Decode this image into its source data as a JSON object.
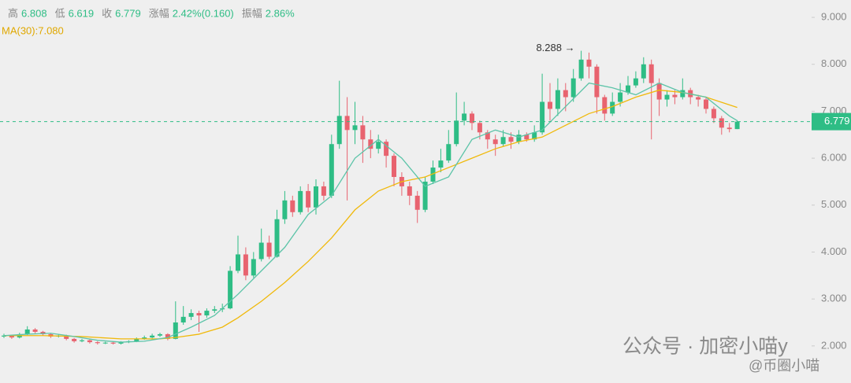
{
  "chart_data": {
    "type": "candlestick",
    "up_color": "#2ebd85",
    "down_color": "#e8636f",
    "ylim": [
      1.21,
      9.37
    ],
    "yticks": [
      {
        "value": 2,
        "label": "2.000"
      },
      {
        "value": 3,
        "label": "3.000"
      },
      {
        "value": 4,
        "label": "4.000"
      },
      {
        "value": 5,
        "label": "5.000"
      },
      {
        "value": 6,
        "label": "6.000"
      },
      {
        "value": 7,
        "label": "7.000"
      },
      {
        "value": 8,
        "label": "8.000"
      },
      {
        "value": 9,
        "label": "9.000"
      }
    ],
    "open": [
      2.2,
      2.22,
      2.18,
      2.25,
      2.35,
      2.3,
      2.25,
      2.2,
      2.22,
      2.15,
      2.1,
      2.12,
      2.08,
      2.06,
      2.07,
      2.05,
      2.08,
      2.1,
      2.15,
      2.18,
      2.22,
      2.25,
      2.15,
      2.5,
      2.62,
      2.7,
      2.65,
      2.75,
      2.78,
      2.8,
      3.6,
      3.95,
      3.5,
      3.85,
      4.2,
      3.9,
      4.7,
      5.1,
      4.85,
      5.3,
      4.95,
      5.4,
      5.2,
      6.3,
      6.9,
      6.6,
      6.7,
      6.4,
      6.2,
      6.35,
      6.05,
      5.6,
      5.4,
      5.2,
      4.9,
      5.5,
      5.8,
      5.95,
      6.3,
      6.8,
      6.95,
      6.75,
      6.55,
      6.4,
      6.3,
      6.45,
      6.35,
      6.5,
      6.4,
      6.55,
      7.2,
      7.05,
      7.45,
      7.3,
      7.7,
      8.1,
      7.95,
      7.3,
      6.95,
      7.2,
      7.4,
      7.55,
      7.7,
      8.0,
      7.6,
      7.25,
      7.35,
      7.3,
      7.45,
      7.3,
      7.25,
      7.05,
      6.85,
      6.65,
      6.62
    ],
    "high": [
      2.26,
      2.24,
      2.28,
      2.42,
      2.38,
      2.32,
      2.27,
      2.25,
      2.24,
      2.17,
      2.15,
      2.14,
      2.1,
      2.09,
      2.09,
      2.1,
      2.12,
      2.18,
      2.22,
      2.26,
      2.28,
      2.27,
      2.95,
      2.85,
      2.78,
      2.75,
      2.8,
      2.85,
      2.9,
      3.7,
      4.35,
      4.1,
      4.0,
      4.5,
      4.35,
      4.9,
      5.3,
      5.2,
      5.4,
      5.45,
      5.55,
      5.5,
      6.5,
      7.65,
      7.3,
      7.2,
      6.9,
      6.6,
      6.5,
      6.4,
      6.1,
      5.7,
      5.5,
      5.3,
      5.6,
      5.95,
      6.2,
      6.6,
      7.4,
      7.2,
      7.0,
      6.8,
      6.6,
      6.5,
      6.6,
      6.55,
      6.6,
      6.55,
      6.7,
      7.8,
      7.6,
      7.7,
      7.6,
      7.9,
      8.288,
      8.25,
      8.0,
      7.35,
      7.4,
      7.6,
      7.75,
      7.85,
      8.15,
      8.1,
      7.7,
      7.45,
      7.45,
      7.7,
      7.5,
      7.35,
      7.3,
      7.1,
      6.9,
      6.75,
      6.808
    ],
    "low": [
      2.17,
      2.15,
      2.16,
      2.23,
      2.27,
      2.22,
      2.17,
      2.18,
      2.12,
      2.07,
      2.08,
      2.05,
      2.03,
      2.04,
      2.03,
      2.03,
      2.06,
      2.08,
      2.13,
      2.16,
      2.19,
      2.12,
      2.14,
      2.45,
      2.55,
      2.3,
      2.6,
      2.7,
      2.72,
      2.78,
      3.55,
      3.4,
      3.45,
      3.8,
      3.85,
      3.88,
      4.6,
      4.75,
      4.8,
      4.85,
      4.8,
      5.1,
      5.15,
      6.2,
      5.1,
      6.3,
      5.9,
      6.0,
      6.1,
      5.8,
      5.4,
      5.2,
      5.0,
      4.62,
      4.85,
      5.45,
      5.7,
      5.9,
      6.25,
      6.7,
      6.6,
      6.4,
      6.2,
      6.05,
      6.25,
      6.2,
      6.3,
      6.35,
      6.35,
      6.5,
      6.8,
      6.9,
      7.0,
      7.2,
      7.65,
      7.7,
      6.95,
      6.8,
      6.9,
      7.1,
      7.35,
      7.5,
      7.6,
      6.4,
      6.9,
      7.1,
      7.15,
      7.25,
      7.15,
      7.1,
      6.95,
      6.75,
      6.5,
      6.55,
      6.619
    ],
    "close": [
      2.22,
      2.18,
      2.25,
      2.35,
      2.3,
      2.25,
      2.2,
      2.22,
      2.15,
      2.1,
      2.12,
      2.08,
      2.06,
      2.07,
      2.05,
      2.08,
      2.1,
      2.15,
      2.18,
      2.22,
      2.25,
      2.15,
      2.5,
      2.62,
      2.7,
      2.65,
      2.75,
      2.78,
      2.8,
      3.6,
      3.95,
      3.5,
      3.85,
      4.2,
      3.9,
      4.7,
      5.1,
      4.85,
      5.3,
      4.95,
      5.4,
      5.2,
      6.3,
      6.9,
      6.6,
      6.7,
      6.4,
      6.2,
      6.35,
      6.05,
      5.6,
      5.4,
      5.2,
      4.9,
      5.5,
      5.8,
      5.95,
      6.3,
      6.8,
      6.95,
      6.75,
      6.55,
      6.4,
      6.3,
      6.45,
      6.35,
      6.5,
      6.4,
      6.55,
      7.2,
      7.05,
      7.45,
      7.3,
      7.7,
      8.1,
      7.95,
      7.3,
      6.95,
      7.2,
      7.4,
      7.55,
      7.7,
      8.0,
      7.6,
      7.25,
      7.35,
      7.3,
      7.45,
      7.3,
      7.25,
      7.05,
      6.85,
      6.65,
      6.62,
      6.779
    ],
    "series": [
      {
        "color": "#f0b90b",
        "x": [
          0,
          5,
          10,
          15,
          20,
          22,
          25,
          28,
          30,
          33,
          36,
          39,
          42,
          45,
          48,
          51,
          54,
          57,
          60,
          63,
          66,
          69,
          72,
          75,
          78,
          81,
          84,
          87,
          90,
          94
        ],
        "values": [
          2.22,
          2.22,
          2.2,
          2.15,
          2.15,
          2.18,
          2.25,
          2.4,
          2.6,
          2.95,
          3.35,
          3.8,
          4.3,
          4.9,
          5.3,
          5.5,
          5.6,
          5.8,
          6.0,
          6.2,
          6.35,
          6.45,
          6.7,
          6.95,
          7.1,
          7.3,
          7.45,
          7.4,
          7.3,
          7.08
        ]
      },
      {
        "color": "#5cc4a8",
        "x": [
          0,
          3,
          6,
          9,
          12,
          15,
          18,
          21,
          24,
          27,
          30,
          33,
          36,
          39,
          42,
          45,
          48,
          51,
          54,
          57,
          60,
          63,
          66,
          69,
          72,
          75,
          78,
          81,
          84,
          87,
          90,
          93,
          94
        ],
        "values": [
          2.22,
          2.25,
          2.27,
          2.2,
          2.12,
          2.08,
          2.1,
          2.18,
          2.4,
          2.65,
          3.1,
          3.6,
          4.1,
          4.8,
          5.2,
          6.0,
          6.4,
          6.0,
          5.4,
          5.6,
          6.4,
          6.6,
          6.45,
          6.6,
          7.1,
          7.6,
          7.5,
          7.35,
          7.6,
          7.4,
          7.3,
          6.9,
          6.8
        ]
      }
    ],
    "last_price": {
      "value": 6.779,
      "label": "6.779"
    },
    "annotation": "8.288 →",
    "legend": {
      "items": [
        {
          "label": "高",
          "value": "6.808"
        },
        {
          "label": "低",
          "value": "6.619"
        },
        {
          "label": "收",
          "value": "6.779"
        },
        {
          "label": "涨幅",
          "value": "2.42%(0.160)"
        },
        {
          "label": "振幅",
          "value": "2.86%"
        }
      ],
      "ma": "MA(30):7.080"
    },
    "watermark": [
      "公众号 · 加密小喵y",
      "@币圈小喵"
    ]
  }
}
